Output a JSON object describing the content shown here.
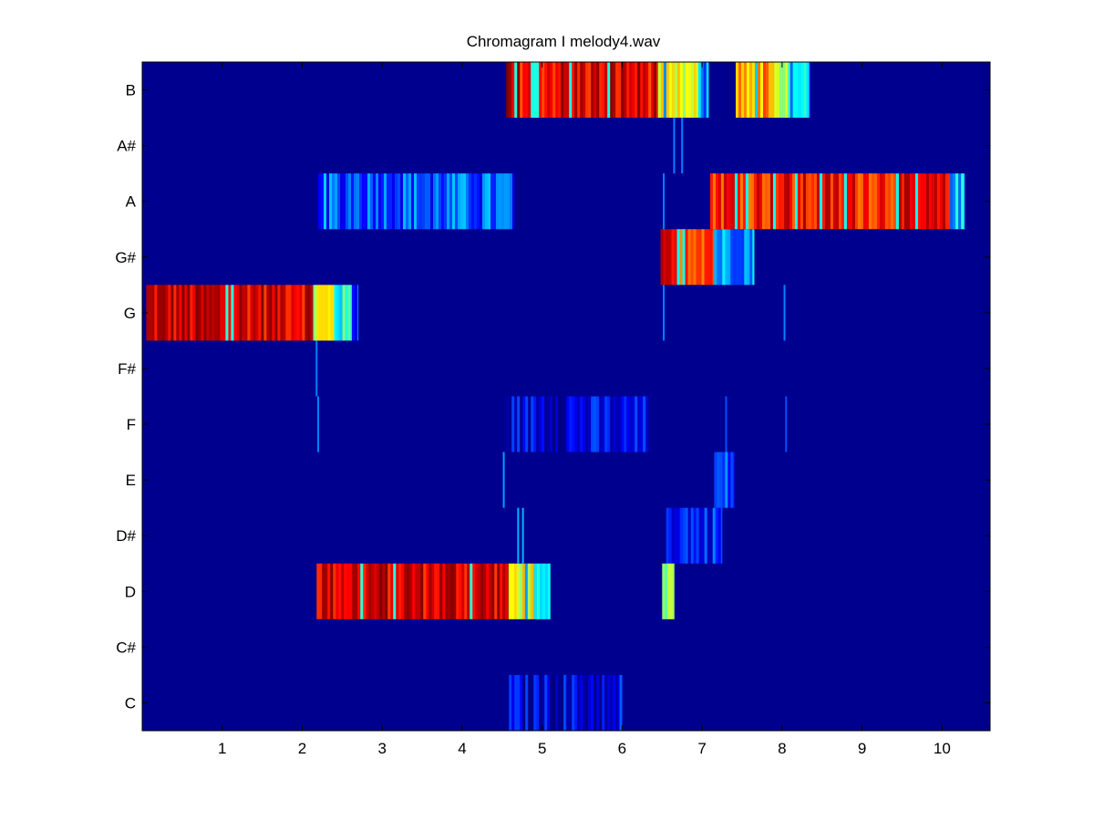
{
  "chart_data": {
    "type": "heatmap",
    "title": "Chromagram I melody4.wav",
    "xlabel": "",
    "ylabel": "",
    "xlim": [
      0.0,
      10.6
    ],
    "xticks": [
      "1",
      "2",
      "3",
      "4",
      "5",
      "6",
      "7",
      "8",
      "9",
      "10"
    ],
    "xtick_values": [
      1,
      2,
      3,
      4,
      5,
      6,
      7,
      8,
      9,
      10
    ],
    "rows": [
      "B",
      "A#",
      "A",
      "G#",
      "G",
      "F#",
      "F",
      "E",
      "D#",
      "D",
      "C#",
      "C"
    ],
    "colormap": "jet",
    "value_range": [
      0,
      1
    ],
    "background_value": 0,
    "colors": {
      "background": "#00008f",
      "axes_frame": "#000000"
    },
    "segments": [
      {
        "row": "G",
        "x0": 0.05,
        "x1": 2.15,
        "level": 0.92
      },
      {
        "row": "G",
        "x0": 2.15,
        "x1": 2.4,
        "level": 0.62
      },
      {
        "row": "G",
        "x0": 2.4,
        "x1": 2.62,
        "level": 0.4
      },
      {
        "row": "G",
        "x0": 2.62,
        "x1": 2.7,
        "level": 0.22
      },
      {
        "row": "D",
        "x0": 2.18,
        "x1": 4.58,
        "level": 0.92
      },
      {
        "row": "D",
        "x0": 4.58,
        "x1": 4.9,
        "level": 0.62
      },
      {
        "row": "D",
        "x0": 4.9,
        "x1": 5.1,
        "level": 0.3
      },
      {
        "row": "A",
        "x0": 2.2,
        "x1": 4.65,
        "level": 0.22
      },
      {
        "row": "B",
        "x0": 4.55,
        "x1": 6.45,
        "level": 0.9
      },
      {
        "row": "B",
        "x0": 6.45,
        "x1": 6.95,
        "level": 0.58
      },
      {
        "row": "B",
        "x0": 6.95,
        "x1": 7.08,
        "level": 0.25
      },
      {
        "row": "B",
        "x0": 7.42,
        "x1": 7.9,
        "level": 0.72
      },
      {
        "row": "B",
        "x0": 7.9,
        "x1": 8.1,
        "level": 0.5
      },
      {
        "row": "B",
        "x0": 8.1,
        "x1": 8.35,
        "level": 0.32
      },
      {
        "row": "G#",
        "x0": 6.48,
        "x1": 7.15,
        "level": 0.85
      },
      {
        "row": "G#",
        "x0": 7.15,
        "x1": 7.65,
        "level": 0.28
      },
      {
        "row": "A",
        "x0": 7.1,
        "x1": 10.1,
        "level": 0.86
      },
      {
        "row": "A",
        "x0": 10.1,
        "x1": 10.28,
        "level": 0.32
      },
      {
        "row": "D#",
        "x0": 6.55,
        "x1": 7.25,
        "level": 0.16
      },
      {
        "row": "E",
        "x0": 7.15,
        "x1": 7.4,
        "level": 0.18
      },
      {
        "row": "D",
        "x0": 6.5,
        "x1": 6.65,
        "level": 0.5
      },
      {
        "row": "F",
        "x0": 4.55,
        "x1": 6.35,
        "level": 0.1
      },
      {
        "row": "C",
        "x0": 4.55,
        "x1": 6.0,
        "level": 0.09
      }
    ],
    "spikes": [
      {
        "row": "F#",
        "x": 2.18,
        "level": 0.25
      },
      {
        "row": "F",
        "x": 2.2,
        "level": 0.25
      },
      {
        "row": "E",
        "x": 4.52,
        "level": 0.28
      },
      {
        "row": "D#",
        "x": 4.7,
        "level": 0.3
      },
      {
        "row": "D#",
        "x": 4.76,
        "level": 0.3
      },
      {
        "row": "A#",
        "x": 6.65,
        "level": 0.25
      },
      {
        "row": "A#",
        "x": 6.75,
        "level": 0.25
      },
      {
        "row": "G",
        "x": 6.52,
        "level": 0.25
      },
      {
        "row": "G",
        "x": 8.03,
        "level": 0.25
      },
      {
        "row": "A",
        "x": 6.52,
        "level": 0.25
      },
      {
        "row": "F",
        "x": 7.3,
        "level": 0.2
      },
      {
        "row": "F",
        "x": 8.05,
        "level": 0.2
      },
      {
        "row": "C",
        "x": 5.98,
        "level": 0.22
      },
      {
        "row": "C",
        "x": 5.28,
        "level": 0.2
      }
    ]
  }
}
